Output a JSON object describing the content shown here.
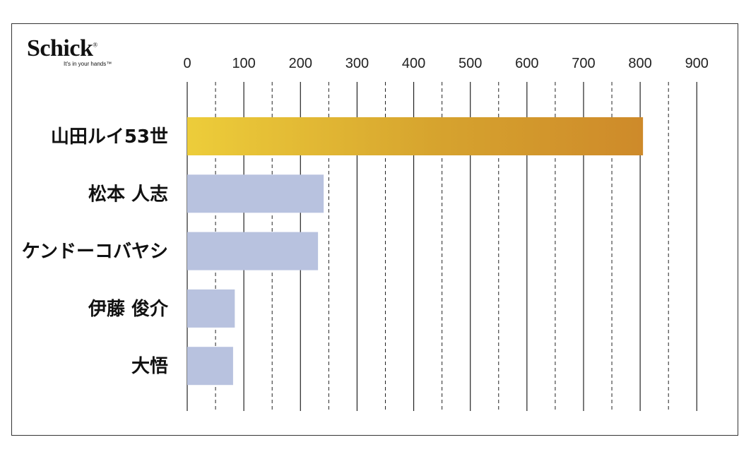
{
  "logo": {
    "brand": "Schick",
    "registered": "®",
    "tagline": "It's in your hands™"
  },
  "chart_data": {
    "type": "bar",
    "orientation": "horizontal",
    "categories": [
      "山田ルイ53世",
      "松本 人志",
      "ケンドーコバヤシ",
      "伊藤 俊介",
      "大悟"
    ],
    "values": [
      805,
      241,
      231,
      84,
      81
    ],
    "xlim": [
      0,
      900
    ],
    "x_ticks": [
      0,
      100,
      200,
      300,
      400,
      500,
      600,
      700,
      800,
      900
    ],
    "x_tick_labels": [
      "0",
      "100",
      "200",
      "300",
      "400",
      "500",
      "600",
      "700",
      "800",
      "900"
    ],
    "grid": "solid at major ticks, dashed at midpoints",
    "colors": {
      "highlight_gradient": [
        "#EDCD3A",
        "#D6A32E",
        "#CE8A2A"
      ],
      "default_bar": "#B8C2DF",
      "grid": "#222222",
      "label": "#111111"
    },
    "highlight_index": 0
  }
}
